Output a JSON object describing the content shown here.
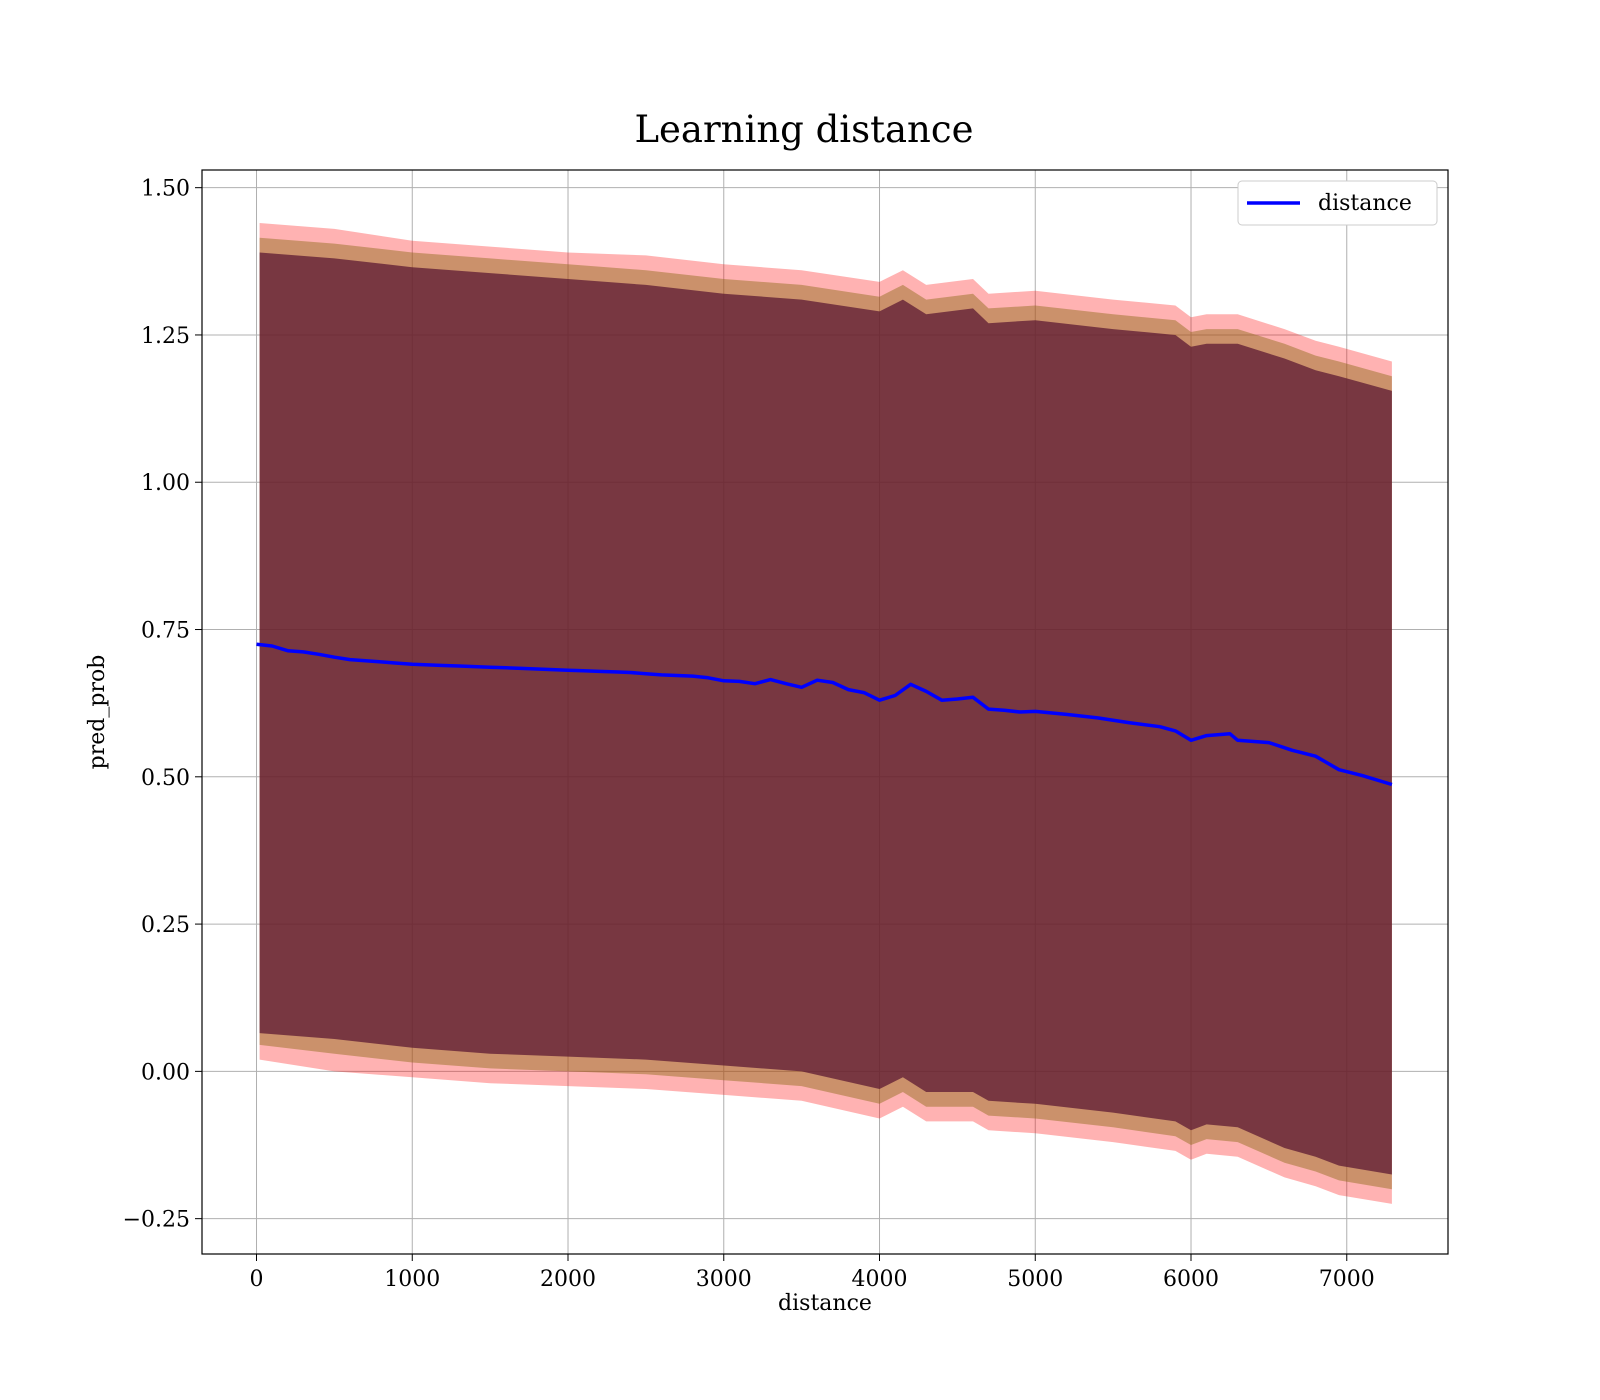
{
  "chart_data": {
    "type": "line",
    "title": "Learning distance",
    "xlabel": "distance",
    "ylabel": "pred_prob",
    "xlim": [
      -350,
      7650
    ],
    "ylim": [
      -0.31,
      1.53
    ],
    "xticks": [
      0,
      1000,
      2000,
      3000,
      4000,
      5000,
      6000,
      7000
    ],
    "yticks": [
      -0.25,
      0.0,
      0.25,
      0.5,
      0.75,
      1.0,
      1.25,
      1.5
    ],
    "xtick_labels": [
      "0",
      "1000",
      "2000",
      "3000",
      "4000",
      "5000",
      "6000",
      "7000"
    ],
    "ytick_labels": [
      "−0.25",
      "0.00",
      "0.25",
      "0.50",
      "0.75",
      "1.00",
      "1.25",
      "1.50"
    ],
    "grid": true,
    "legend_position": "top-right",
    "colors": {
      "line": "#0000ff",
      "band_outer": "#ff0000",
      "band_middle": "#8b6914",
      "band_inner": "#5c1a33",
      "grid": "#b0b0b0"
    },
    "series": [
      {
        "name": "distance",
        "x": [
          0,
          100,
          200,
          300,
          400,
          500,
          600,
          700,
          800,
          900,
          1000,
          1100,
          1200,
          1300,
          1400,
          1500,
          1600,
          1700,
          1800,
          1900,
          2000,
          2100,
          2200,
          2300,
          2400,
          2500,
          2600,
          2700,
          2800,
          2900,
          3000,
          3100,
          3200,
          3300,
          3400,
          3500,
          3600,
          3700,
          3800,
          3900,
          4000,
          4100,
          4200,
          4300,
          4400,
          4500,
          4600,
          4700,
          4800,
          4900,
          5000,
          5200,
          5400,
          5600,
          5800,
          5900,
          6000,
          6100,
          6250,
          6300,
          6500,
          6650,
          6800,
          6950,
          7100,
          7290
        ],
        "y": [
          0.725,
          0.722,
          0.714,
          0.712,
          0.708,
          0.703,
          0.699,
          0.697,
          0.695,
          0.693,
          0.691,
          0.69,
          0.689,
          0.688,
          0.687,
          0.686,
          0.685,
          0.684,
          0.683,
          0.682,
          0.681,
          0.68,
          0.679,
          0.678,
          0.677,
          0.675,
          0.673,
          0.672,
          0.671,
          0.668,
          0.663,
          0.662,
          0.658,
          0.665,
          0.658,
          0.652,
          0.664,
          0.66,
          0.648,
          0.643,
          0.63,
          0.638,
          0.657,
          0.645,
          0.63,
          0.632,
          0.635,
          0.615,
          0.613,
          0.61,
          0.611,
          0.606,
          0.6,
          0.592,
          0.585,
          0.578,
          0.562,
          0.57,
          0.573,
          0.562,
          0.558,
          0.545,
          0.535,
          0.512,
          0.502,
          0.487
        ]
      }
    ],
    "bands": [
      {
        "x": [
          20,
          500,
          1000,
          1500,
          2000,
          2500,
          3000,
          3500,
          4000,
          4150,
          4300,
          4600,
          4700,
          5000,
          5500,
          5900,
          6000,
          6100,
          6300,
          6600,
          6800,
          6950,
          7290
        ],
        "upper": [
          1.44,
          1.43,
          1.41,
          1.4,
          1.39,
          1.385,
          1.37,
          1.36,
          1.34,
          1.36,
          1.335,
          1.345,
          1.32,
          1.325,
          1.31,
          1.3,
          1.28,
          1.285,
          1.285,
          1.26,
          1.24,
          1.23,
          1.205
        ],
        "lower": [
          0.02,
          0.0,
          -0.01,
          -0.02,
          -0.025,
          -0.03,
          -0.04,
          -0.05,
          -0.08,
          -0.06,
          -0.085,
          -0.085,
          -0.1,
          -0.105,
          -0.12,
          -0.135,
          -0.15,
          -0.14,
          -0.145,
          -0.18,
          -0.195,
          -0.21,
          -0.225
        ]
      },
      {
        "x": [
          20,
          500,
          1000,
          1500,
          2000,
          2500,
          3000,
          3500,
          4000,
          4150,
          4300,
          4600,
          4700,
          5000,
          5500,
          5900,
          6000,
          6100,
          6300,
          6600,
          6800,
          6950,
          7290
        ],
        "upper": [
          1.415,
          1.405,
          1.39,
          1.38,
          1.37,
          1.36,
          1.345,
          1.335,
          1.315,
          1.335,
          1.31,
          1.32,
          1.295,
          1.3,
          1.285,
          1.275,
          1.255,
          1.26,
          1.26,
          1.235,
          1.215,
          1.205,
          1.18
        ],
        "lower": [
          0.045,
          0.03,
          0.015,
          0.005,
          0.0,
          -0.005,
          -0.015,
          -0.025,
          -0.055,
          -0.035,
          -0.06,
          -0.06,
          -0.075,
          -0.08,
          -0.095,
          -0.11,
          -0.125,
          -0.115,
          -0.12,
          -0.155,
          -0.17,
          -0.185,
          -0.2
        ]
      },
      {
        "x": [
          20,
          500,
          1000,
          1500,
          2000,
          2500,
          3000,
          3500,
          4000,
          4150,
          4300,
          4600,
          4700,
          5000,
          5500,
          5900,
          6000,
          6100,
          6300,
          6600,
          6800,
          6950,
          7290
        ],
        "upper": [
          1.39,
          1.38,
          1.365,
          1.355,
          1.345,
          1.335,
          1.32,
          1.31,
          1.29,
          1.31,
          1.285,
          1.295,
          1.27,
          1.275,
          1.26,
          1.25,
          1.23,
          1.235,
          1.235,
          1.21,
          1.19,
          1.18,
          1.155
        ],
        "lower": [
          0.065,
          0.055,
          0.04,
          0.03,
          0.025,
          0.02,
          0.01,
          0.0,
          -0.03,
          -0.01,
          -0.035,
          -0.035,
          -0.05,
          -0.055,
          -0.07,
          -0.085,
          -0.1,
          -0.09,
          -0.095,
          -0.13,
          -0.145,
          -0.16,
          -0.175
        ]
      }
    ]
  }
}
